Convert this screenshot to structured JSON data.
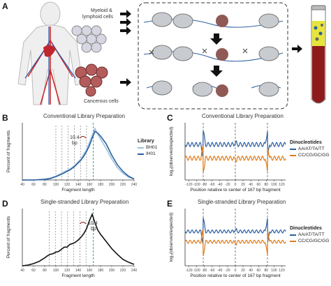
{
  "panel_a": {
    "label": "A",
    "cells": [
      "Myeloid &",
      "lymphoid cells",
      "Cancerous cells"
    ]
  },
  "chart_data": [
    {
      "id": "B",
      "type": "line",
      "title": "Conventional Library Preparation",
      "xlabel": "Fragment length",
      "ylabel": "Percent of fragments",
      "xlim": [
        40,
        240
      ],
      "xticks": [
        40,
        60,
        80,
        100,
        120,
        140,
        160,
        180,
        200,
        220,
        240
      ],
      "legend_title": "Library",
      "annotation": [
        "10.4",
        "bp"
      ],
      "dashed_gray_x": [
        100,
        111,
        122,
        133,
        144,
        155
      ],
      "dashed_green_x": 167,
      "series": [
        {
          "name": "BH01",
          "color": "#9dc0d8",
          "x": [
            40,
            60,
            80,
            90,
            100,
            110,
            115,
            120,
            125,
            130,
            135,
            140,
            145,
            150,
            155,
            160,
            165,
            170,
            175,
            180,
            190,
            200,
            210,
            220,
            230,
            240
          ],
          "y": [
            0,
            0,
            0.1,
            0.2,
            0.4,
            0.7,
            0.85,
            1.0,
            1.15,
            1.35,
            1.6,
            1.9,
            2.2,
            2.7,
            3.2,
            3.9,
            4.7,
            5.4,
            4.8,
            4.3,
            3.3,
            2.2,
            1.3,
            0.7,
            0.3,
            0.1
          ]
        },
        {
          "name": "IH01",
          "color": "#2c5fa0",
          "x": [
            40,
            60,
            80,
            90,
            100,
            110,
            115,
            120,
            125,
            130,
            135,
            140,
            145,
            150,
            155,
            160,
            165,
            170,
            175,
            180,
            190,
            200,
            210,
            220,
            230,
            240
          ],
          "y": [
            0,
            0,
            0.05,
            0.15,
            0.35,
            0.6,
            0.75,
            0.9,
            1.05,
            1.25,
            1.5,
            1.8,
            2.1,
            2.5,
            3.0,
            3.6,
            4.4,
            5.1,
            4.9,
            4.6,
            3.8,
            2.6,
            1.6,
            0.9,
            0.4,
            0.1
          ]
        }
      ]
    },
    {
      "id": "C",
      "type": "line",
      "title": "Conventional Library Preparation",
      "xlabel": "Position relative to center of 167 bp fragment",
      "ylabel": "log₂(observed/expected)",
      "xlim": [
        -130,
        130
      ],
      "xticks": [
        -120,
        -100,
        -80,
        -60,
        -40,
        -20,
        0,
        20,
        40,
        60,
        80,
        100,
        120
      ],
      "legend_title": "Dinucleotides",
      "dashed_x": [
        -83,
        0,
        83
      ],
      "series": [
        {
          "name": "AA/AT/TA/TT",
          "color": "#2c5fa0",
          "baseline": 0.62
        },
        {
          "name": "CC/CG/GC/GG",
          "color": "#e07b1a",
          "baseline": 0.38
        }
      ]
    },
    {
      "id": "D",
      "type": "line",
      "title": "Single-stranded Library Preparation",
      "xlabel": "Fragment length",
      "ylabel": "Percent of fragments",
      "xlim": [
        40,
        240
      ],
      "xticks": [
        40,
        60,
        80,
        100,
        120,
        140,
        160,
        180,
        200,
        220,
        240
      ],
      "annotation": [
        "10.4",
        "bp"
      ],
      "dashed_gray_x": [
        88,
        99,
        110,
        121,
        132,
        143,
        154
      ],
      "dashed_green_x": 167,
      "series": [
        {
          "name": "",
          "color": "#111111",
          "x": [
            40,
            50,
            60,
            70,
            80,
            85,
            90,
            95,
            100,
            105,
            110,
            115,
            120,
            125,
            130,
            135,
            140,
            145,
            150,
            155,
            160,
            165,
            170,
            175,
            180,
            190,
            200,
            210,
            220,
            230,
            240
          ],
          "y": [
            0,
            0.1,
            0.3,
            0.6,
            1.1,
            1.4,
            1.6,
            1.7,
            1.9,
            2.0,
            2.3,
            2.6,
            2.6,
            3.0,
            3.1,
            3.3,
            3.6,
            4.0,
            4.5,
            5.2,
            6.3,
            7.2,
            6.0,
            5.0,
            4.4,
            3.4,
            2.4,
            1.6,
            0.9,
            0.5,
            0.2
          ]
        }
      ]
    },
    {
      "id": "E",
      "type": "line",
      "title": "Single-stranded Library Preparation",
      "xlabel": "Position relative to center of 167 bp fragment",
      "ylabel": "log₂(observed/expected)",
      "xlim": [
        -130,
        130
      ],
      "xticks": [
        -120,
        -100,
        -80,
        -60,
        -40,
        -20,
        0,
        20,
        40,
        60,
        80,
        100,
        120
      ],
      "legend_title": "Dinucleotides",
      "dashed_x": [
        -83,
        0,
        83
      ],
      "series": [
        {
          "name": "AA/AT/TA/TT",
          "color": "#2c5fa0",
          "baseline": 0.6
        },
        {
          "name": "CC/CG/GC/GG",
          "color": "#e07b1a",
          "baseline": 0.42
        }
      ]
    }
  ],
  "colors": {
    "blue": "#2c5fa0",
    "lightblue": "#9dc0d8",
    "orange": "#e07b1a",
    "green": "#2e9e3e",
    "tube_red": "#8e1b1b",
    "tube_yellow": "#e6e53a"
  }
}
